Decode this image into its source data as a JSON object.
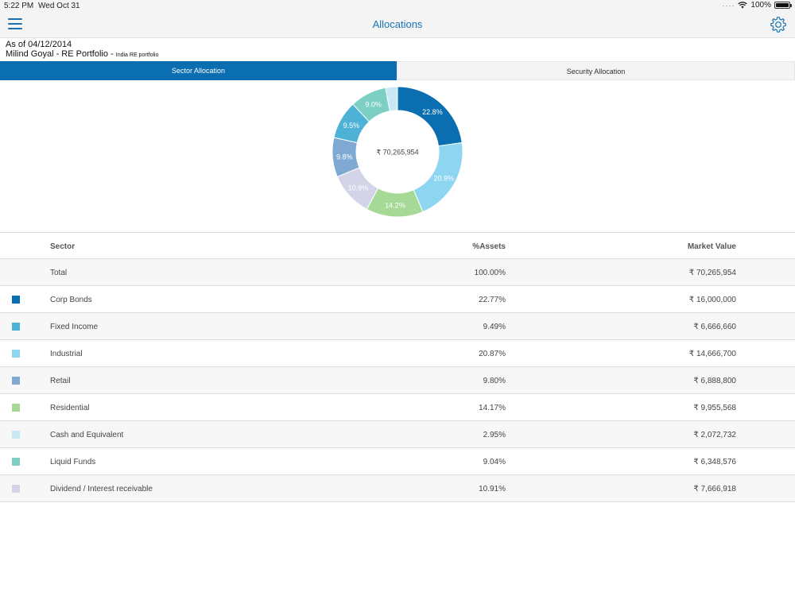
{
  "status_bar": {
    "time": "5:22 PM",
    "date": "Wed Oct 31",
    "battery": "100%"
  },
  "nav": {
    "title": "Allocations"
  },
  "info": {
    "as_of": "As of 04/12/2014",
    "portfolio_name": "Milind Goyal - RE Portfolio - ",
    "portfolio_sub": "India RE portfolio"
  },
  "tabs": {
    "sector": "Sector Allocation",
    "security": "Security Allocation"
  },
  "chart_data": {
    "type": "pie",
    "center_label": "₹ 70,265,954",
    "slices": [
      {
        "label": "22.8%",
        "value": 22.77,
        "color": "#0a6eb0"
      },
      {
        "label": "20.9%",
        "value": 20.87,
        "color": "#8dd5f0"
      },
      {
        "label": "14.2%",
        "value": 14.17,
        "color": "#a5d995"
      },
      {
        "label": "10.9%",
        "value": 10.91,
        "color": "#d3d4e8"
      },
      {
        "label": "9.8%",
        "value": 9.8,
        "color": "#7fa9d2"
      },
      {
        "label": "9.5%",
        "value": 9.49,
        "color": "#4eb2d7"
      },
      {
        "label": "9.0%",
        "value": 9.04,
        "color": "#7dcfc4"
      },
      {
        "label": "",
        "value": 2.95,
        "color": "#c8e8f6"
      }
    ]
  },
  "table": {
    "headers": {
      "sector": "Sector",
      "assets": "%Assets",
      "market_value": "Market Value"
    },
    "total": {
      "name": "Total",
      "pct": "100.00%",
      "mv": "₹ 70,265,954"
    },
    "rows": [
      {
        "name": "Corp Bonds",
        "pct": "22.77%",
        "mv": "₹ 16,000,000",
        "color": "#0a6eb0"
      },
      {
        "name": "Fixed Income",
        "pct": "9.49%",
        "mv": "₹ 6,666,660",
        "color": "#4eb2d7"
      },
      {
        "name": "Industrial",
        "pct": "20.87%",
        "mv": "₹ 14,666,700",
        "color": "#8dd5f0"
      },
      {
        "name": "Retail",
        "pct": "9.80%",
        "mv": "₹ 6,888,800",
        "color": "#7fa9d2"
      },
      {
        "name": "Residential",
        "pct": "14.17%",
        "mv": "₹ 9,955,568",
        "color": "#a5d995"
      },
      {
        "name": "Cash and Equivalent",
        "pct": "2.95%",
        "mv": "₹ 2,072,732",
        "color": "#c8e8f6"
      },
      {
        "name": "Liquid Funds",
        "pct": "9.04%",
        "mv": "₹ 6,348,576",
        "color": "#7dcfc4"
      },
      {
        "name": "Dividend / Interest receivable",
        "pct": "10.91%",
        "mv": "₹ 7,666,918",
        "color": "#d3d4e8"
      }
    ]
  }
}
